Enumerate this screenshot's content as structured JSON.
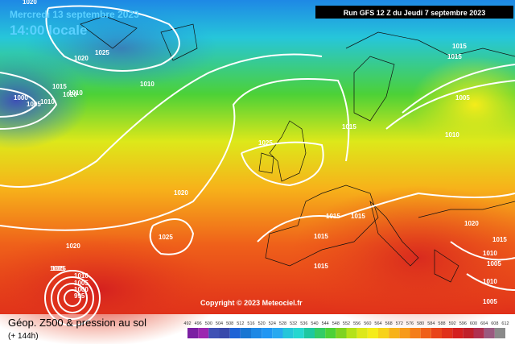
{
  "header": {
    "date": "Mercredi 13 septembre 2023",
    "time": "14:00 locale",
    "run": "Run GFS 12 Z du Jeudi 7 septembre 2023"
  },
  "copyright": "Copyright © 2023 Meteociel.fr",
  "isobar_labels": [
    "1020",
    "1025",
    "1020",
    "1015",
    "1020",
    "1010",
    "1000",
    "1005",
    "1010",
    "1010",
    "1025",
    "1015",
    "1015",
    "1005",
    "1010",
    "1020",
    "1025",
    "1020",
    "1015",
    "1015",
    "1015",
    "1015",
    "1020",
    "1015",
    "1010",
    "1005",
    "1015",
    "1010",
    "1005",
    "1000",
    "995",
    "1015",
    "1010",
    "1005",
    "1015"
  ],
  "legend": {
    "title": "Géop. Z500 & pression au sol",
    "subtitle": "(+ 144h)",
    "labels": [
      "492",
      "496",
      "500",
      "504",
      "508",
      "512",
      "516",
      "520",
      "524",
      "528",
      "532",
      "536",
      "540",
      "544",
      "548",
      "552",
      "556",
      "560",
      "564",
      "568",
      "572",
      "576",
      "580",
      "584",
      "588",
      "592",
      "596",
      "600",
      "604",
      "608",
      "612"
    ],
    "colors": [
      "#7b1fa2",
      "#9c27b0",
      "#3f51b5",
      "#3949ab",
      "#1e63d6",
      "#1976d2",
      "#1e88e5",
      "#2196f3",
      "#29a9f0",
      "#26c6da",
      "#26d7d0",
      "#1ec8a0",
      "#33cc66",
      "#4cd137",
      "#7ed321",
      "#b4e21a",
      "#dde81a",
      "#f5ec1a",
      "#f7d21a",
      "#f7b21a",
      "#f79a1a",
      "#f47d1a",
      "#ef601a",
      "#e8441a",
      "#e0301a",
      "#d41f1f",
      "#c0202a",
      "#b03050",
      "#9a5a80",
      "#8a8a8a"
    ]
  }
}
